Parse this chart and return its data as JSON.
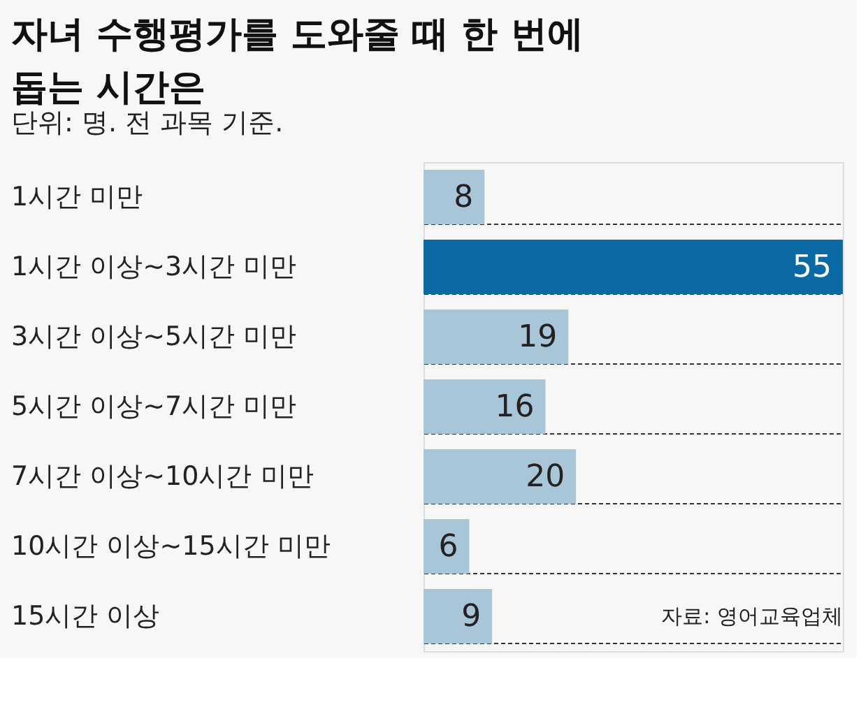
{
  "chart_data": {
    "type": "bar",
    "orientation": "horizontal",
    "title": [
      "자녀 수행평가를 도와줄 때 한 번에",
      "돕는 시간은"
    ],
    "subtitle": "단위: 명. 전 과목 기준.",
    "categories": [
      "1시간 미만",
      "1시간 이상~3시간 미만",
      "3시간 이상~5시간 미만",
      "5시간 이상~7시간 미만",
      "7시간 이상~10시간 미만",
      "10시간 이상~15시간 미만",
      "15시간 이상"
    ],
    "values": [
      8,
      55,
      19,
      16,
      20,
      6,
      9
    ],
    "colors": [
      "#a9c5d8",
      "#0b6aa3",
      "#a9c5d8",
      "#a9c5d8",
      "#a9c5d8",
      "#a9c5d8",
      "#a9c5d8"
    ],
    "data_labels": true,
    "grid": "y",
    "annotations": [
      "자료: 영어교육업체"
    ]
  }
}
